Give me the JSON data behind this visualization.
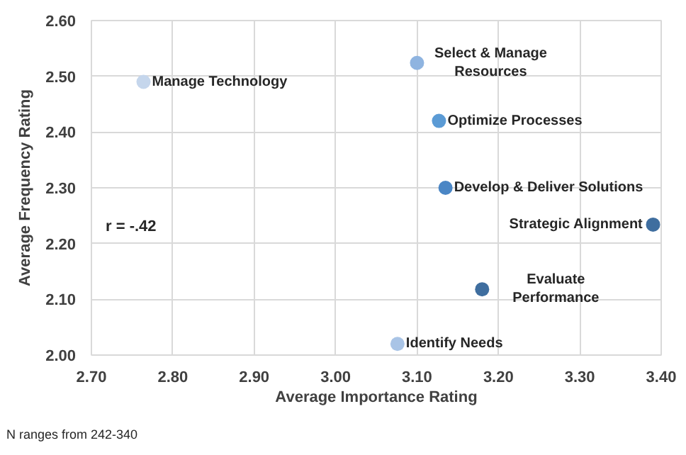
{
  "chart_data": {
    "type": "scatter",
    "xlabel": "Average Importance Rating",
    "ylabel": "Average Frequency Rating",
    "x": [
      2.764,
      3.1,
      3.127,
      3.135,
      3.39,
      3.18,
      3.076
    ],
    "values": [
      2.49,
      2.524,
      2.42,
      2.3,
      2.234,
      2.118,
      2.02
    ],
    "colors": [
      "#c5d6ec",
      "#8fb4e0",
      "#5b9bd5",
      "#4a86c5",
      "#3f6e9f",
      "#3f6e9f",
      "#a9c4e6"
    ],
    "xlim": [
      2.7,
      3.4
    ],
    "ylim": [
      2.0,
      2.6
    ],
    "xticks": [
      {
        "value": 2.7,
        "label": "2.70"
      },
      {
        "value": 2.8,
        "label": "2.80"
      },
      {
        "value": 2.9,
        "label": "2.90"
      },
      {
        "value": 3.0,
        "label": "3.00"
      },
      {
        "value": 3.1,
        "label": "3.10"
      },
      {
        "value": 3.2,
        "label": "3.20"
      },
      {
        "value": 3.3,
        "label": "3.30"
      },
      {
        "value": 3.4,
        "label": "3.40"
      }
    ],
    "yticks": [
      {
        "value": 2.0,
        "label": "2.00"
      },
      {
        "value": 2.1,
        "label": "2.10"
      },
      {
        "value": 2.2,
        "label": "2.20"
      },
      {
        "value": 2.3,
        "label": "2.30"
      },
      {
        "value": 2.4,
        "label": "2.40"
      },
      {
        "value": 2.5,
        "label": "2.50"
      },
      {
        "value": 2.6,
        "label": "2.60"
      }
    ],
    "grid": true,
    "marker": "circle",
    "annotations": [
      {
        "text": "Manage Technology",
        "x": 2.764,
        "y": 2.49
      },
      {
        "text": "Select & Manage\nResources",
        "x": 3.1,
        "y": 2.524
      },
      {
        "text": "Optimize Processes",
        "x": 3.127,
        "y": 2.42
      },
      {
        "text": "Develop & Deliver Solutions",
        "x": 3.135,
        "y": 2.3
      },
      {
        "text": "Strategic Alignment",
        "x": 3.39,
        "y": 2.234
      },
      {
        "text": "Evaluate\nPerformance",
        "x": 3.18,
        "y": 2.118
      },
      {
        "text": "Identify Needs",
        "x": 3.076,
        "y": 2.02
      },
      "r = -.42",
      "N ranges  from 242-340"
    ]
  }
}
